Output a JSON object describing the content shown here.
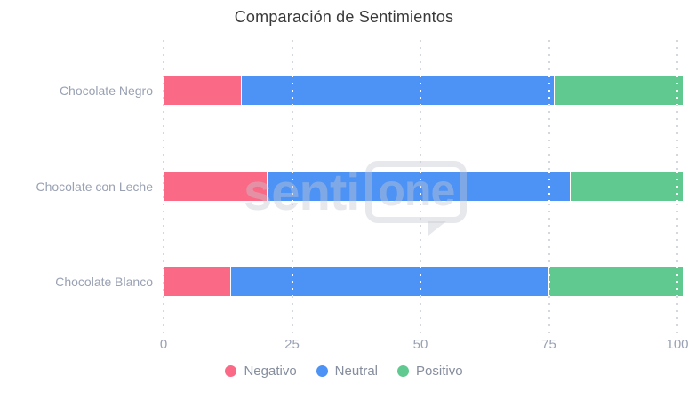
{
  "title": "Comparación de Sentimientos",
  "watermark": {
    "prefix": "senti",
    "suffix": "one"
  },
  "colors": {
    "negative": "#fa6a87",
    "neutral": "#4d92f5",
    "positive": "#5fc990",
    "axis_text": "#99a1b3",
    "legend_text": "#868e9e",
    "gridline": "#d4d7dd",
    "title_text": "#3a3a3a"
  },
  "chart_data": {
    "type": "bar",
    "orientation": "horizontal",
    "stacked": true,
    "title": "Comparación de Sentimientos",
    "xlabel": "",
    "ylabel": "",
    "categories": [
      "Chocolate Negro",
      "Chocolate con Leche",
      "Chocolate Blanco"
    ],
    "series": [
      {
        "name": "Negativo",
        "color": "#fa6a87",
        "values": [
          15,
          20,
          13
        ]
      },
      {
        "name": "Neutral",
        "color": "#4d92f5",
        "values": [
          61,
          59,
          62
        ]
      },
      {
        "name": "Positivo",
        "color": "#5fc990",
        "values": [
          25,
          22,
          26
        ]
      }
    ],
    "xticks": [
      0,
      25,
      50,
      75,
      100
    ],
    "xlim": [
      0,
      101
    ],
    "grid": "dotted-vertical",
    "legend_position": "bottom"
  }
}
